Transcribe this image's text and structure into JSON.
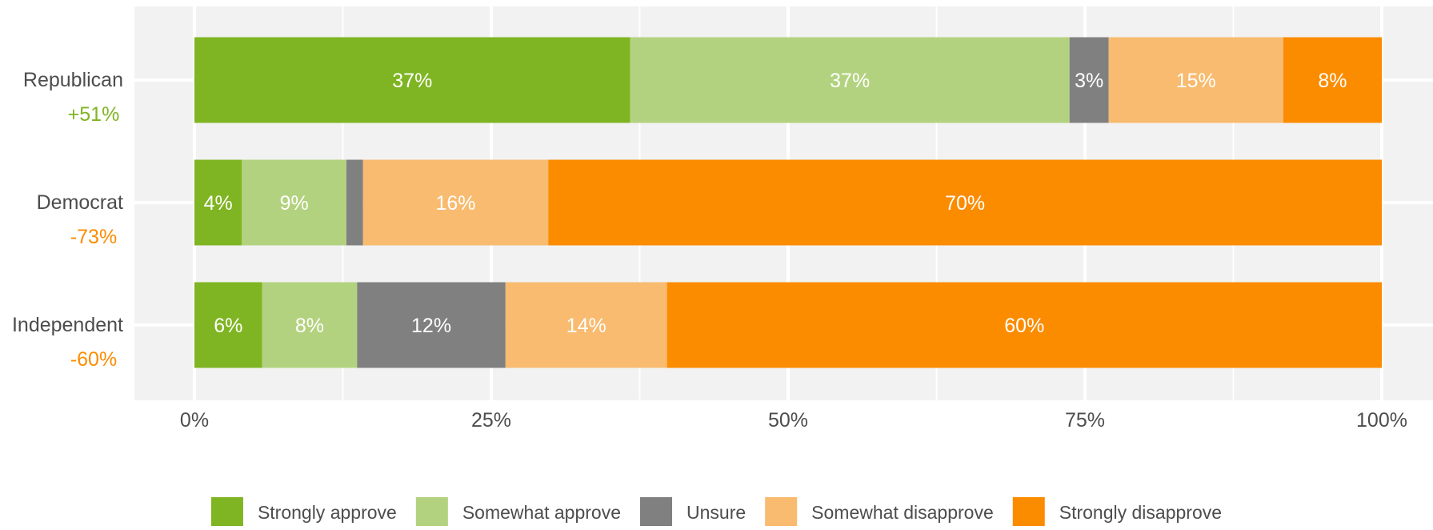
{
  "chart_data": {
    "type": "bar",
    "orientation": "horizontal",
    "stacked": true,
    "title": "",
    "xlabel": "",
    "ylabel": "",
    "xlim": [
      0,
      1
    ],
    "x_ticks": [
      0,
      0.25,
      0.5,
      0.75,
      1
    ],
    "x_tick_labels": [
      "0%",
      "25%",
      "50%",
      "75%",
      "100%"
    ],
    "grid": true,
    "legend_position": "bottom",
    "categories": [
      "Republican",
      "Democrat",
      "Independent"
    ],
    "net_labels": [
      "+51%",
      "-73%",
      "-60%"
    ],
    "net_colors": [
      "#7fb522",
      "#fb8c00",
      "#fb8c00"
    ],
    "series": [
      {
        "name": "Strongly approve",
        "color": "#7fb522",
        "values": [
          0.367,
          0.04,
          0.057
        ],
        "labels": [
          "37%",
          "4%",
          "6%"
        ]
      },
      {
        "name": "Somewhat approve",
        "color": "#b3d27f",
        "values": [
          0.37,
          0.088,
          0.08
        ],
        "labels": [
          "37%",
          "9%",
          "8%"
        ]
      },
      {
        "name": "Unsure",
        "color": "#808080",
        "values": [
          0.033,
          0.014,
          0.125
        ],
        "labels": [
          "3%",
          "",
          "12%"
        ]
      },
      {
        "name": "Somewhat disapprove",
        "color": "#f8bb6f",
        "values": [
          0.147,
          0.156,
          0.136
        ],
        "labels": [
          "15%",
          "16%",
          "14%"
        ]
      },
      {
        "name": "Strongly disapprove",
        "color": "#fb8c00",
        "values": [
          0.083,
          0.702,
          0.602
        ],
        "labels": [
          "8%",
          "70%",
          "60%"
        ]
      }
    ]
  }
}
